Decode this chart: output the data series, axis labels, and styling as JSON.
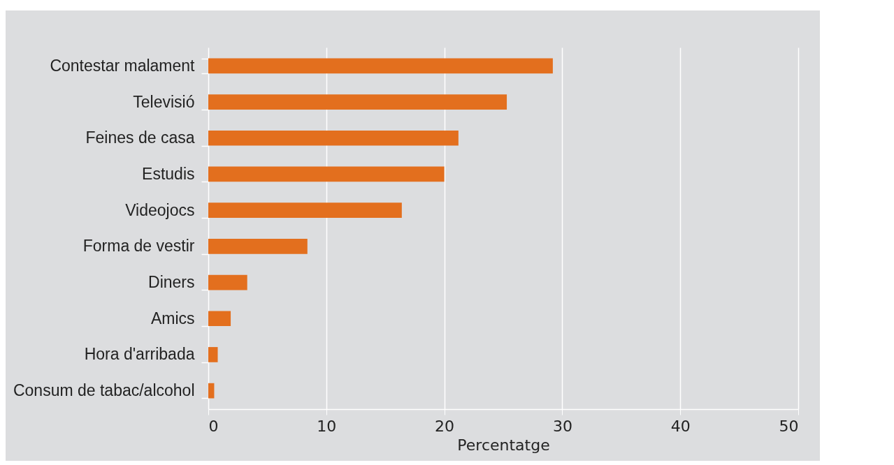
{
  "chart_data": {
    "type": "bar",
    "orientation": "horizontal",
    "xlabel": "Percentatge",
    "categories": [
      "Contestar malament",
      "Televisió",
      "Feines de casa",
      "Estudis",
      "Videojocs",
      "Forma de vestir",
      "Diners",
      "Amics",
      "Hora d'arribada",
      "Consum de tabac/alcohol"
    ],
    "values": [
      29.2,
      25.3,
      21.2,
      20.0,
      16.4,
      8.4,
      3.3,
      1.9,
      0.8,
      0.5
    ],
    "color": "#e36f1e",
    "xlim": [
      0,
      50
    ],
    "xticks": [
      0,
      10,
      20,
      30,
      40,
      50
    ],
    "grid": "x"
  }
}
